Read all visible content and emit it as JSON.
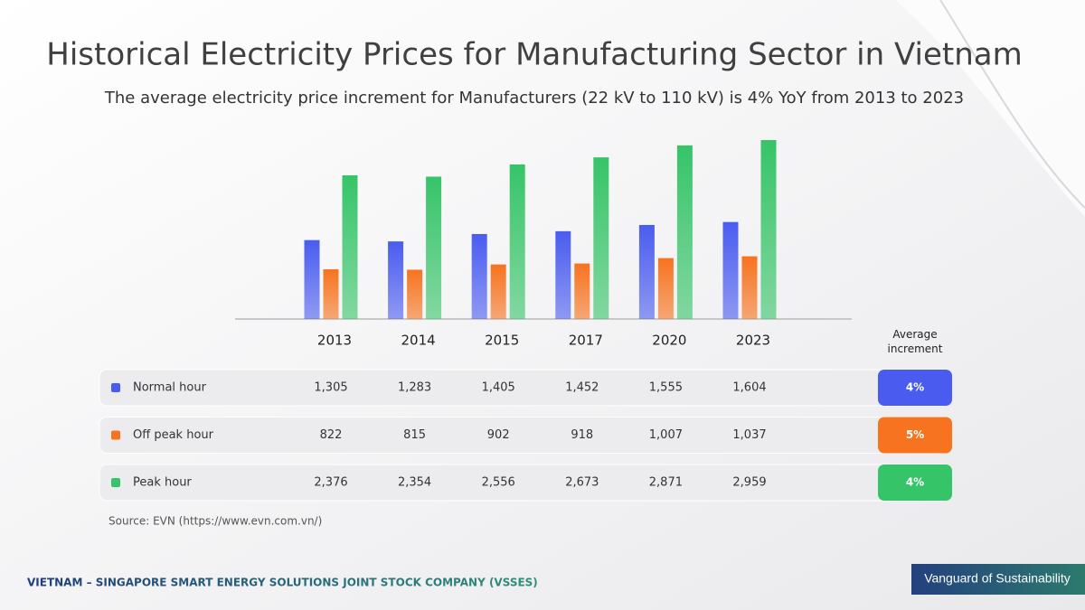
{
  "chart_data": {
    "type": "bar",
    "title": "Historical Electricity Prices for Manufacturing Sector in Vietnam",
    "subtitle": "The average electricity price increment for Manufacturers (22 kV to 110 kV) is 4% YoY from 2013 to 2023",
    "categories": [
      "2013",
      "2014",
      "2015",
      "2017",
      "2020",
      "2023"
    ],
    "increment_header": "Average increment",
    "series": [
      {
        "name": "Normal hour",
        "color": "#4a5cf0",
        "values": [
          1305,
          1283,
          1405,
          1452,
          1555,
          1604
        ],
        "value_labels": [
          "1,305",
          "1,283",
          "1,405",
          "1,452",
          "1,555",
          "1,604"
        ],
        "average_increment": "4%"
      },
      {
        "name": "Off peak hour",
        "color": "#f7731f",
        "values": [
          822,
          815,
          902,
          918,
          1007,
          1037
        ],
        "value_labels": [
          "822",
          "815",
          "902",
          "918",
          "1,007",
          "1,037"
        ],
        "average_increment": "5%"
      },
      {
        "name": "Peak hour",
        "color": "#36c468",
        "values": [
          2376,
          2354,
          2556,
          2673,
          2871,
          2959
        ],
        "value_labels": [
          "2,376",
          "2,354",
          "2,556",
          "2,673",
          "2,871",
          "2,959"
        ],
        "average_increment": "4%"
      }
    ],
    "source": "Source: EVN (https://www.evn.com.vn/)",
    "footer": "VIETNAM – SINGAPORE SMART ENERGY SOLUTIONS JOINT STOCK COMPANY (VSSES)",
    "badge": "Vanguard of Sustainability"
  }
}
